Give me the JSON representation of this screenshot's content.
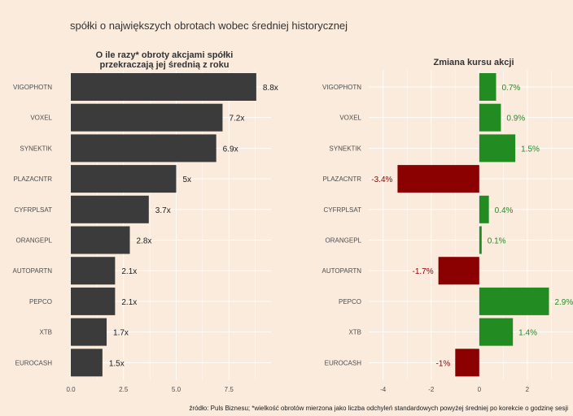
{
  "title": "spółki o największych obrotach wobec średniej historycznej",
  "caption": "źródło: Puls Biznesu; *wielkość obrotów mierzona jako liczba odchyleń standardowych powyżej średniej po korekcie o godzinę sesji",
  "colors": {
    "background": "#faebdd",
    "bar_dark": "#3b3b3b",
    "positive": "#228b22",
    "negative": "#8b0000",
    "text_dark": "#1a1a1a",
    "grid": "#ffffff"
  },
  "chart_data": [
    {
      "type": "bar",
      "orientation": "horizontal",
      "title_lines": [
        "O ile razy* obroty akcjami spółki",
        "przekraczają jej średnią z roku"
      ],
      "categories": [
        "VIGOPHOTN",
        "VOXEL",
        "SYNEKTIK",
        "PLAZACNTR",
        "CYFRPLSAT",
        "ORANGEPL",
        "AUTOPARTN",
        "PEPCO",
        "XTB",
        "EUROCASH"
      ],
      "values": [
        8.8,
        7.2,
        6.9,
        5.0,
        3.7,
        2.8,
        2.1,
        2.1,
        1.7,
        1.5
      ],
      "labels": [
        "8.8x",
        "7.2x",
        "6.9x",
        "5x",
        "3.7x",
        "2.8x",
        "2.1x",
        "2.1x",
        "1.7x",
        "1.5x"
      ],
      "xlim": [
        0,
        9.5
      ],
      "ticks": [
        0,
        2.5,
        5,
        7.5
      ],
      "tick_labels": [
        "0.0",
        "2.5",
        "5.0",
        "7.5"
      ],
      "grid": true
    },
    {
      "type": "bar",
      "orientation": "horizontal",
      "title_lines": [
        "Zmiana kursu akcji"
      ],
      "categories": [
        "VIGOPHOTN",
        "VOXEL",
        "SYNEKTIK",
        "PLAZACNTR",
        "CYFRPLSAT",
        "ORANGEPL",
        "AUTOPARTN",
        "PEPCO",
        "XTB",
        "EUROCASH"
      ],
      "values": [
        0.7,
        0.9,
        1.5,
        -3.4,
        0.4,
        0.1,
        -1.7,
        2.9,
        1.4,
        -1.0
      ],
      "labels": [
        "0.7%",
        "0.9%",
        "1.5%",
        "-3.4%",
        "0.4%",
        "0.1%",
        "-1.7%",
        "2.9%",
        "1.4%",
        "-1%"
      ],
      "xlim": [
        -4.6,
        3.9
      ],
      "ticks": [
        -4,
        -2,
        0,
        2
      ],
      "tick_labels": [
        "-4",
        "-2",
        "0",
        "2"
      ],
      "grid": true
    }
  ]
}
